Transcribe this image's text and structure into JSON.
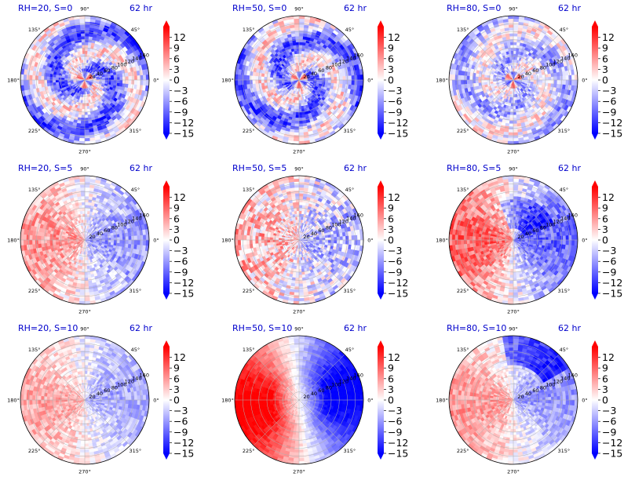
{
  "chart_data": {
    "type": "heatmap",
    "projection": "polar",
    "angle_tick_labels": [
      "0°",
      "45°",
      "90°",
      "135°",
      "180°",
      "225°",
      "270°",
      "315°"
    ],
    "radial_tick_labels": [
      "20",
      "40",
      "60",
      "80",
      "100",
      "120",
      "140",
      "160"
    ],
    "radial_range": [
      0,
      160
    ],
    "colorbar": {
      "tick_labels": [
        "12",
        "9",
        "6",
        "3",
        "0",
        "−3",
        "−6",
        "−9",
        "−12",
        "−15"
      ],
      "range": [
        -15,
        15
      ],
      "extend": "both",
      "colormap": "bwr"
    },
    "panels": [
      {
        "title_left": "RH=20, S=0",
        "title_right": "62 hr",
        "rh": 20,
        "shear": 0
      },
      {
        "title_left": "RH=50, S=0",
        "title_right": "62 hr",
        "rh": 50,
        "shear": 0
      },
      {
        "title_left": "RH=80, S=0",
        "title_right": "62 hr",
        "rh": 80,
        "shear": 0
      },
      {
        "title_left": "RH=20, S=5",
        "title_right": "62 hr",
        "rh": 20,
        "shear": 5
      },
      {
        "title_left": "RH=50, S=5",
        "title_right": "62 hr",
        "rh": 50,
        "shear": 5
      },
      {
        "title_left": "RH=80, S=5",
        "title_right": "62 hr",
        "rh": 80,
        "shear": 5
      },
      {
        "title_left": "RH=20, S=10",
        "title_right": "62 hr",
        "rh": 20,
        "shear": 10
      },
      {
        "title_left": "RH=50, S=10",
        "title_right": "62 hr",
        "rh": 50,
        "shear": 10
      },
      {
        "title_left": "RH=80, S=10",
        "title_right": "62 hr",
        "rh": 80,
        "shear": 10
      }
    ]
  },
  "colors": {
    "title_text": "#0000cc",
    "cmap_min": "#0000ff",
    "cmap_mid": "#ffffff",
    "cmap_max": "#ff0000"
  }
}
